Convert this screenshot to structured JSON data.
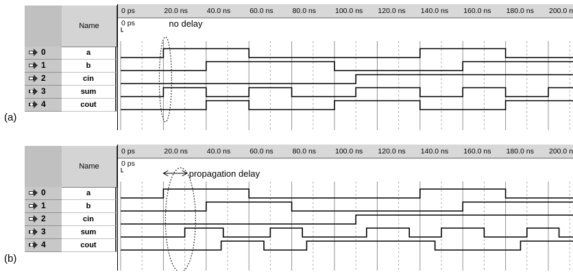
{
  "time_axis": {
    "labels": [
      "0 ps",
      "20.0 ns",
      "40.0 ns",
      "60.0 ns",
      "80.0 ns",
      "100.0 ns",
      "120.0 ns",
      "140.0 ns",
      "160.0 ns",
      "180.0 ns",
      "200.0 ns"
    ],
    "marker_label": "0 ps"
  },
  "name_header": "Name",
  "signals": [
    {
      "index": "0",
      "name": "a",
      "type": "input"
    },
    {
      "index": "1",
      "name": "b",
      "type": "input"
    },
    {
      "index": "2",
      "name": "cin",
      "type": "input"
    },
    {
      "index": "3",
      "name": "sum",
      "type": "output"
    },
    {
      "index": "4",
      "name": "cout",
      "type": "output"
    }
  ],
  "panels": [
    {
      "label": "(a)",
      "annotation": "no delay",
      "waves": {
        "a": [
          [
            0,
            0
          ],
          [
            20,
            1
          ],
          [
            60,
            0
          ],
          [
            140,
            1
          ],
          [
            180,
            0
          ]
        ],
        "b": [
          [
            0,
            0
          ],
          [
            40,
            1
          ],
          [
            100,
            0
          ],
          [
            160,
            1
          ]
        ],
        "cin": [
          [
            0,
            0
          ],
          [
            110,
            1
          ]
        ],
        "sum": [
          [
            0,
            0
          ],
          [
            20,
            1
          ],
          [
            40,
            0
          ],
          [
            60,
            1
          ],
          [
            80,
            0
          ],
          [
            110,
            1
          ],
          [
            140,
            0
          ],
          [
            160,
            1
          ],
          [
            180,
            0
          ],
          [
            200,
            1
          ]
        ],
        "cout": [
          [
            0,
            0
          ],
          [
            40,
            1
          ],
          [
            60,
            0
          ],
          [
            100,
            1
          ],
          [
            140,
            0
          ],
          [
            180,
            1
          ]
        ]
      }
    },
    {
      "label": "(b)",
      "annotation": "propagation delay",
      "waves": {
        "a": [
          [
            0,
            0
          ],
          [
            20,
            1
          ],
          [
            60,
            0
          ],
          [
            140,
            1
          ],
          [
            180,
            0
          ]
        ],
        "b": [
          [
            0,
            0
          ],
          [
            40,
            1
          ],
          [
            80,
            0
          ],
          [
            160,
            1
          ]
        ],
        "cin": [
          [
            0,
            0
          ],
          [
            110,
            1
          ]
        ],
        "sum": [
          [
            0,
            0
          ],
          [
            30,
            1
          ],
          [
            48,
            0
          ],
          [
            70,
            1
          ],
          [
            85,
            0
          ],
          [
            115,
            1
          ],
          [
            135,
            0
          ],
          [
            150,
            1
          ],
          [
            170,
            0
          ],
          [
            190,
            1
          ],
          [
            205,
            0
          ]
        ],
        "cout": [
          [
            0,
            0
          ],
          [
            47,
            1
          ],
          [
            67,
            0
          ],
          [
            87,
            1
          ],
          [
            147,
            0
          ],
          [
            187,
            1
          ]
        ]
      }
    }
  ]
}
